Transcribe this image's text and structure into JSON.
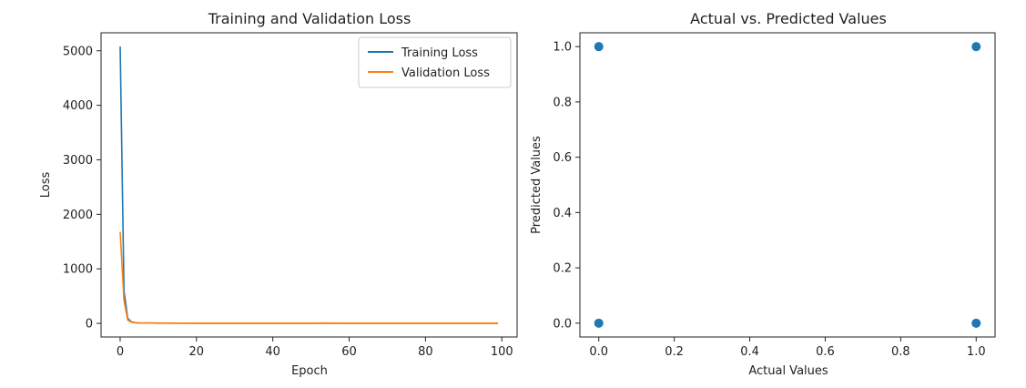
{
  "chart_data": [
    {
      "type": "line",
      "title": "Training and Validation Loss",
      "xlabel": "Epoch",
      "ylabel": "Loss",
      "xlim": [
        -5,
        104
      ],
      "ylim": [
        -250,
        5330
      ],
      "xticks": [
        "0",
        "20",
        "40",
        "60",
        "80",
        "100"
      ],
      "yticks": [
        "0",
        "1000",
        "2000",
        "3000",
        "4000",
        "5000"
      ],
      "legend_position": "top-right",
      "grid": false,
      "series": [
        {
          "name": "Training Loss",
          "color": "#1f77b4",
          "x": [
            0,
            1,
            2,
            3,
            4,
            5,
            6,
            8,
            10,
            15,
            20,
            30,
            40,
            50,
            60,
            70,
            80,
            90,
            99
          ],
          "y": [
            5080,
            600,
            90,
            25,
            12,
            8,
            6,
            5,
            4,
            4,
            3,
            3,
            3,
            3,
            3,
            3,
            3,
            3,
            3
          ]
        },
        {
          "name": "Validation Loss",
          "color": "#ff7f0e",
          "x": [
            0,
            1,
            2,
            3,
            4,
            5,
            6,
            8,
            10,
            15,
            20,
            30,
            40,
            50,
            54,
            60,
            70,
            80,
            90,
            99
          ],
          "y": [
            1680,
            420,
            60,
            20,
            10,
            7,
            6,
            5,
            5,
            4,
            4,
            4,
            4,
            4,
            6,
            4,
            4,
            4,
            4,
            4
          ]
        }
      ]
    },
    {
      "type": "scatter",
      "title": "Actual vs. Predicted Values",
      "xlabel": "Actual Values",
      "ylabel": "Predicted Values",
      "xlim": [
        -0.05,
        1.05
      ],
      "ylim": [
        -0.05,
        1.05
      ],
      "xticks": [
        "0.0",
        "0.2",
        "0.4",
        "0.6",
        "0.8",
        "1.0"
      ],
      "yticks": [
        "0.0",
        "0.2",
        "0.4",
        "0.6",
        "0.8",
        "1.0"
      ],
      "grid": false,
      "color": "#1f77b4",
      "points": [
        {
          "x": 0.0,
          "y": 1.0
        },
        {
          "x": 1.0,
          "y": 1.0
        },
        {
          "x": 0.0,
          "y": 0.0
        },
        {
          "x": 1.0,
          "y": 0.0
        }
      ]
    }
  ]
}
